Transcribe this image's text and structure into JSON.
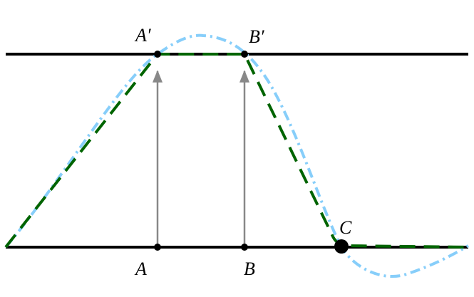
{
  "points": [
    {
      "label": "A′"
    },
    {
      "label": "B′"
    },
    {
      "label": "A"
    },
    {
      "label": "B"
    },
    {
      "label": "C"
    }
  ]
}
